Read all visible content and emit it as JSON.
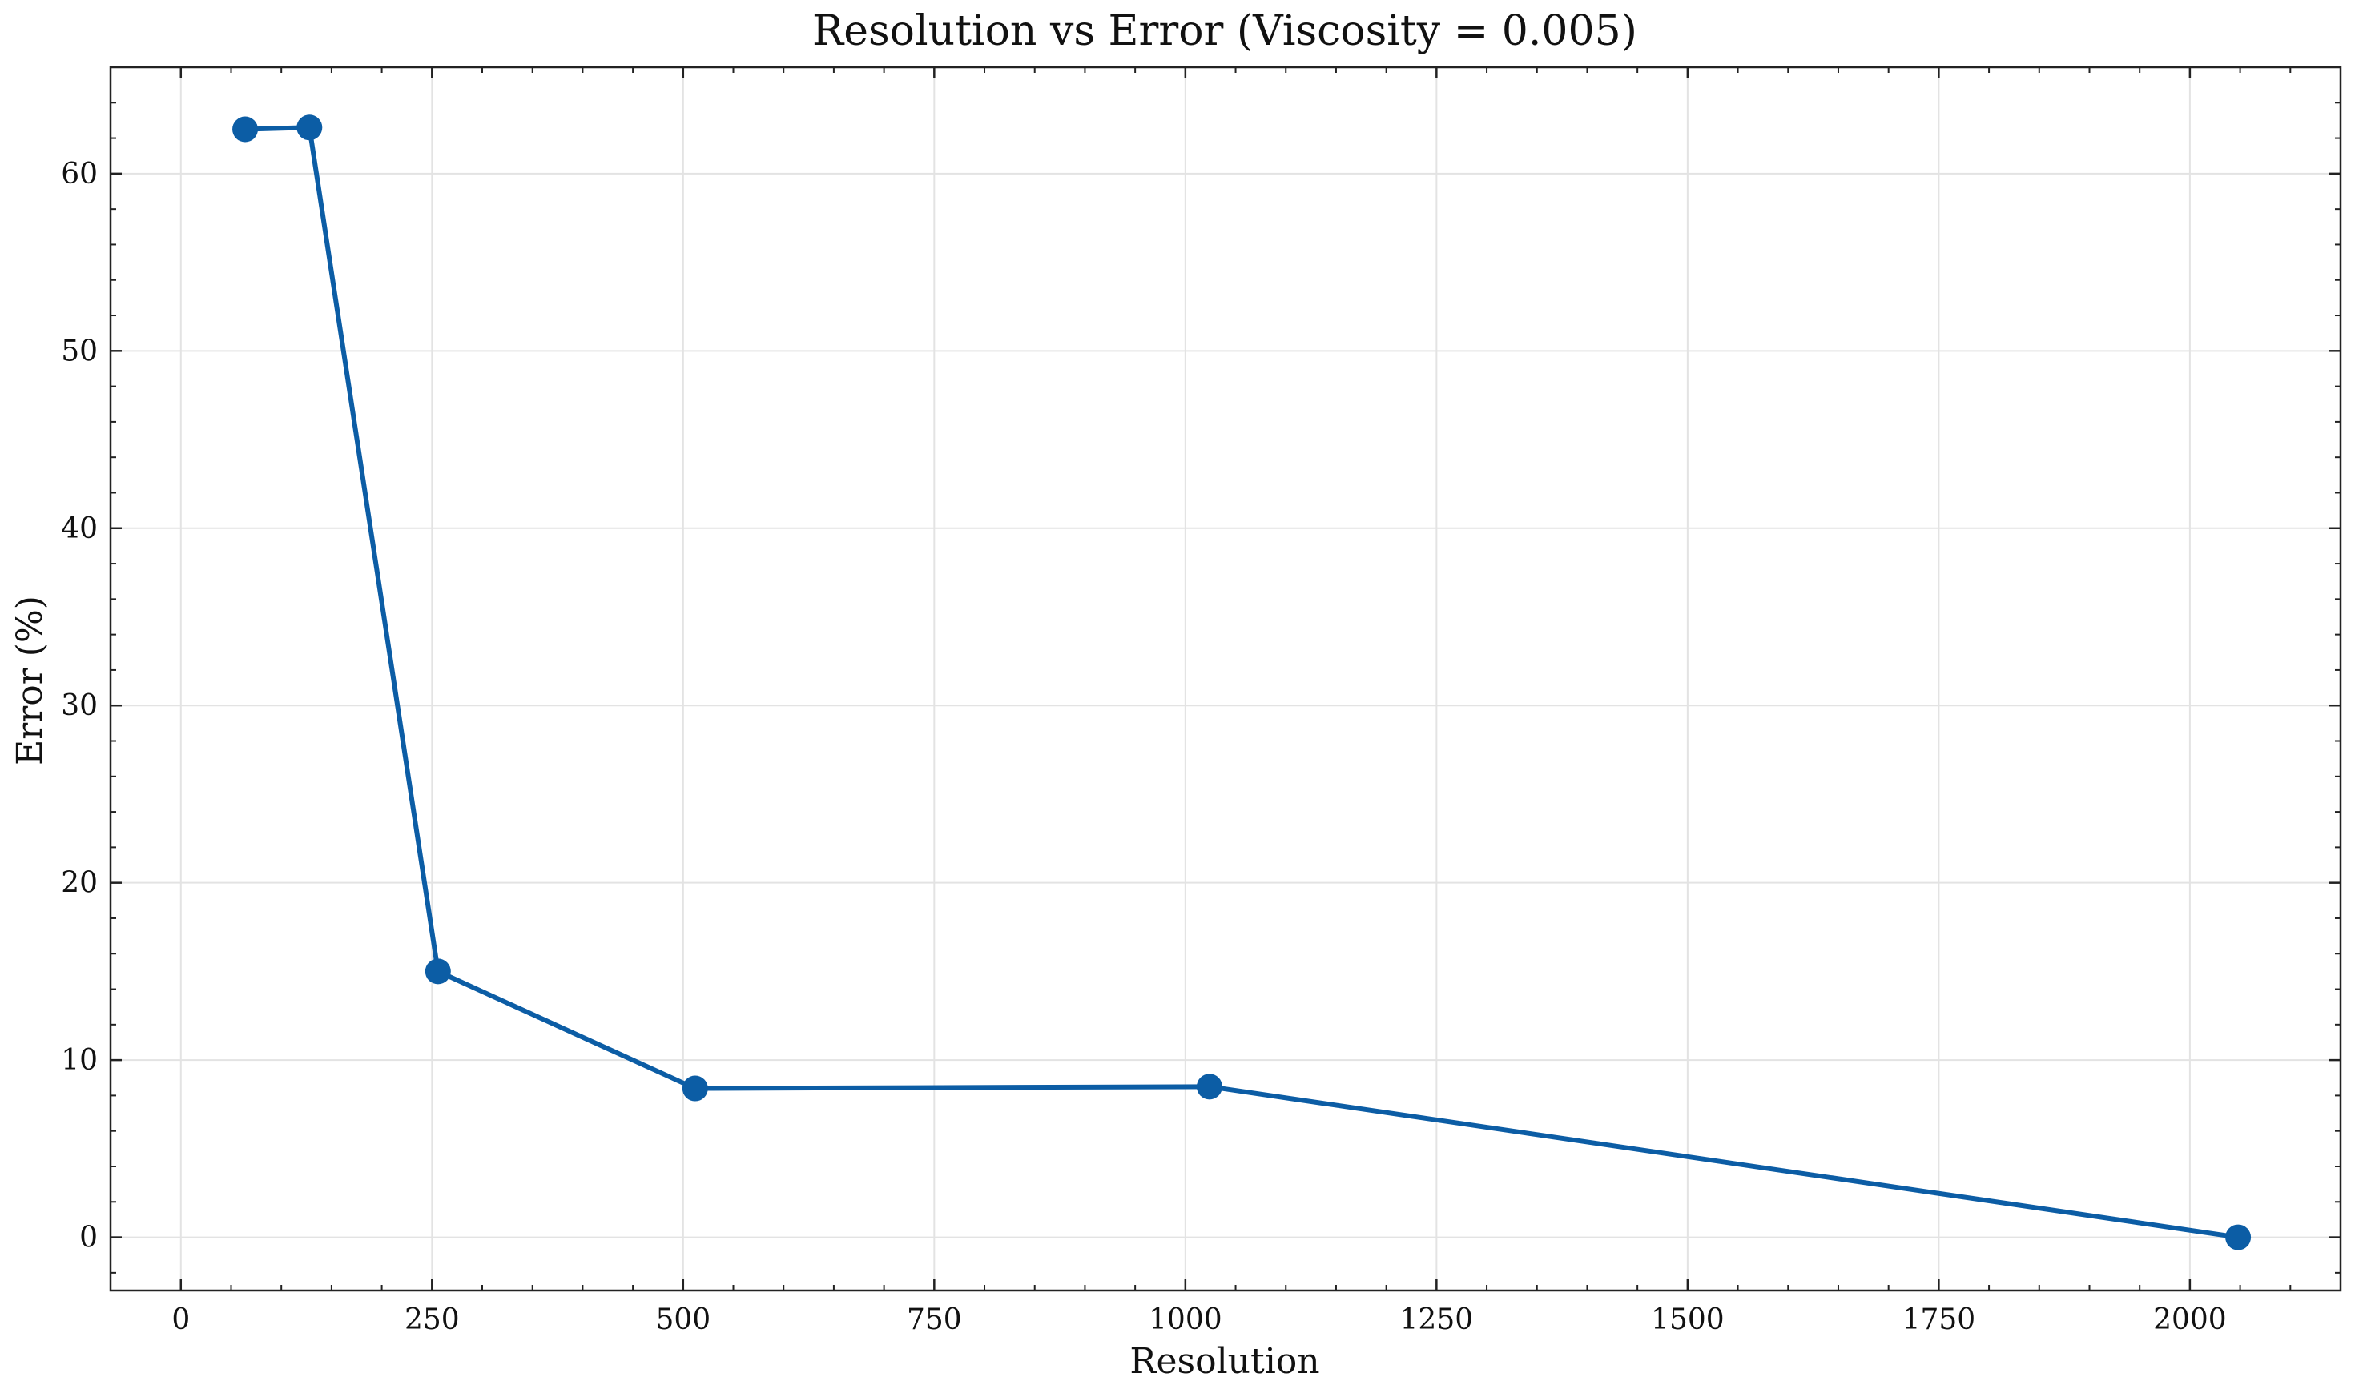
{
  "chart_data": {
    "type": "line",
    "title": "Resolution vs Error (Viscosity = 0.005)",
    "xlabel": "Resolution",
    "ylabel": "Error (%)",
    "xlim": [
      -70,
      2150
    ],
    "ylim": [
      -3,
      66
    ],
    "xticks": [
      0,
      250,
      500,
      750,
      1000,
      1250,
      1500,
      1750,
      2000
    ],
    "yticks": [
      0,
      10,
      20,
      30,
      40,
      50,
      60
    ],
    "x_minor_step": 50,
    "y_minor_step": 2,
    "grid": true,
    "colors": {
      "line": "#0c5da5"
    },
    "series": [
      {
        "x": [
          64,
          128,
          256,
          512,
          1024,
          2048
        ],
        "values": [
          62.5,
          62.6,
          15.0,
          8.4,
          8.5,
          0.0
        ]
      }
    ]
  }
}
